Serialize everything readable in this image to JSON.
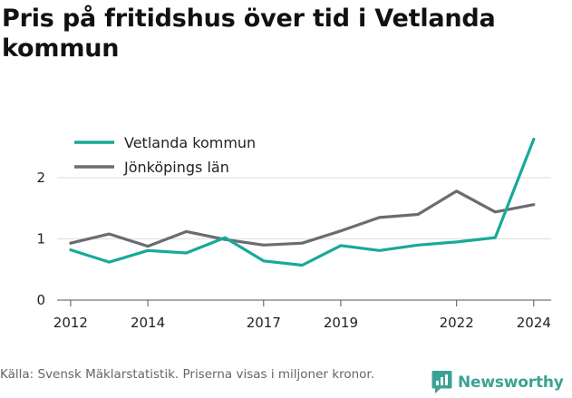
{
  "title": "Pris på fritidshus över tid i Vetlanda kommun",
  "source": "Källa: Svensk Mäklarstatistik. Priserna visas i miljoner kronor.",
  "brand": "Newsworthy",
  "colors": {
    "vetlanda": "#18a999",
    "lan": "#6b6b73",
    "brand": "#3aa395",
    "grid": "#dddddd"
  },
  "chart_data": {
    "type": "line",
    "title": "Pris på fritidshus över tid i Vetlanda kommun",
    "xlabel": "",
    "ylabel": "",
    "x_ticks": [
      2012,
      2014,
      2017,
      2019,
      2022,
      2024
    ],
    "y_ticks": [
      0,
      1,
      2
    ],
    "xlim": [
      2012,
      2024
    ],
    "ylim": [
      0,
      2.7
    ],
    "grid": "horizontal",
    "legend_position": "top-left",
    "series": [
      {
        "name": "Vetlanda kommun",
        "color": "#18a999",
        "x": [
          2012,
          2013,
          2014,
          2015,
          2016,
          2017,
          2018,
          2019,
          2020,
          2021,
          2022,
          2023,
          2024
        ],
        "values": [
          0.82,
          0.62,
          0.81,
          0.77,
          1.02,
          0.64,
          0.57,
          0.89,
          0.81,
          0.9,
          0.95,
          1.02,
          2.63
        ]
      },
      {
        "name": "Jönköpings län",
        "color": "#6b6b73",
        "x": [
          2012,
          2013,
          2014,
          2015,
          2016,
          2017,
          2018,
          2019,
          2020,
          2021,
          2022,
          2023,
          2024
        ],
        "values": [
          0.93,
          1.08,
          0.88,
          1.12,
          0.99,
          0.9,
          0.93,
          1.13,
          1.35,
          1.4,
          1.78,
          1.44,
          1.56
        ]
      }
    ]
  }
}
